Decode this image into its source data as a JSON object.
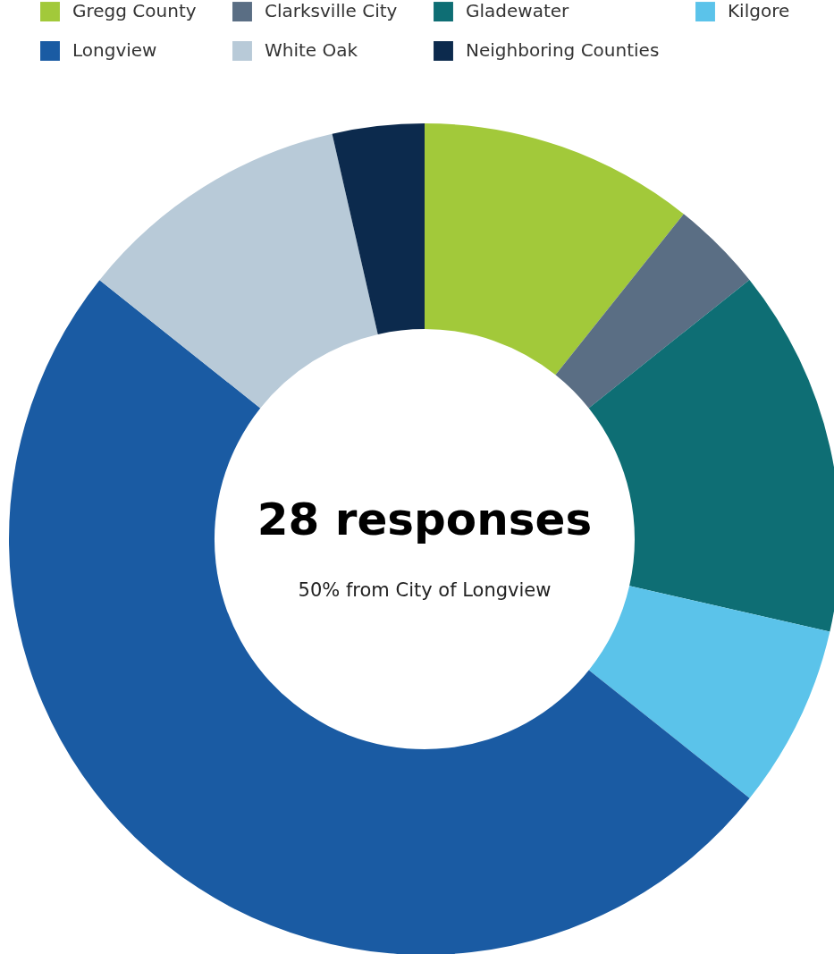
{
  "chart_data": {
    "type": "donut",
    "title": "28 responses",
    "subtitle": "50% from City of Longview",
    "categories": [
      "Gregg County",
      "Clarksville City",
      "Gladewater",
      "Kilgore",
      "Longview",
      "White Oak",
      "Neighboring Counties"
    ],
    "values": [
      10.71,
      3.57,
      14.29,
      7.14,
      50,
      10.72,
      3.57
    ],
    "colors": [
      "#a2c93a",
      "#5a6e84",
      "#0e6e74",
      "#5bc3ea",
      "#1a5ba3",
      "#b8cad8",
      "#0c2a4d"
    ],
    "legend": "top"
  }
}
